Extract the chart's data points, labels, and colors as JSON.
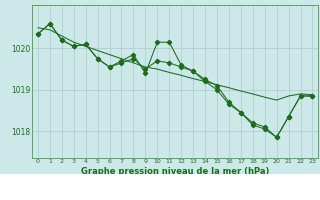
{
  "x": [
    0,
    1,
    2,
    3,
    4,
    5,
    6,
    7,
    8,
    9,
    10,
    11,
    12,
    13,
    14,
    15,
    16,
    17,
    18,
    19,
    20,
    21,
    22,
    23
  ],
  "line_zigzag": [
    1020.35,
    1020.6,
    1020.2,
    1020.05,
    1020.1,
    1019.75,
    1019.55,
    1019.7,
    1019.85,
    1019.4,
    1020.15,
    1020.15,
    1019.6,
    1019.45,
    1019.25,
    1019.1,
    1018.7,
    1018.45,
    1018.15,
    1018.05,
    1017.85,
    1018.35,
    1018.85,
    1018.85
  ],
  "line_lower": [
    1020.35,
    1020.6,
    1020.2,
    1020.05,
    1020.1,
    1019.75,
    1019.55,
    1019.65,
    1019.75,
    1019.5,
    1019.7,
    1019.65,
    1019.55,
    1019.45,
    1019.2,
    1019.0,
    1018.65,
    1018.45,
    1018.2,
    1018.1,
    1017.85,
    1018.35,
    1018.85,
    1018.85
  ],
  "trend": [
    1020.5,
    1020.45,
    1020.3,
    1020.15,
    1020.05,
    1019.95,
    1019.85,
    1019.75,
    1019.65,
    1019.55,
    1019.5,
    1019.42,
    1019.35,
    1019.27,
    1019.2,
    1019.12,
    1019.05,
    1018.97,
    1018.9,
    1018.82,
    1018.75,
    1018.85,
    1018.9,
    1018.88
  ],
  "bg_color": "#cce8e8",
  "line_color": "#1e6b1e",
  "grid_color": "#aacccc",
  "border_color": "#4a9a4a",
  "ylabel_ticks": [
    1018,
    1019,
    1020
  ],
  "xlabel": "Graphe pression niveau de la mer (hPa)",
  "ylim_min": 1017.35,
  "ylim_max": 1021.05,
  "marker": "D",
  "marker_size": 2.2,
  "linewidth": 0.75
}
